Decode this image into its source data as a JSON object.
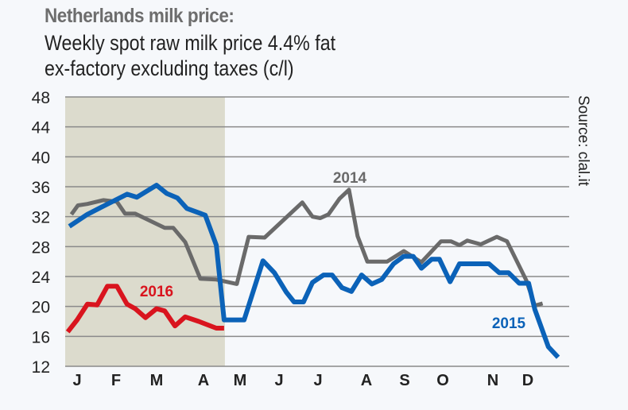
{
  "chart_data": {
    "type": "line",
    "title": "Netherlands milk price:",
    "subtitle": [
      "Weekly spot raw milk price 4.4% fat",
      "ex-factory excluding taxes (c/l)"
    ],
    "source": "Source: clal.it",
    "xlabel": "",
    "ylabel": "",
    "x_unit": "month",
    "x_tick_labels": [
      "J",
      "F",
      "M",
      "A",
      "M",
      "J",
      "J",
      "A",
      "S",
      "O",
      "N",
      "D"
    ],
    "y_ticks": [
      12,
      16,
      20,
      24,
      28,
      32,
      36,
      40,
      44,
      48
    ],
    "ylim": [
      12,
      48
    ],
    "grid": "horizontal",
    "shaded_until_month": 4.61,
    "colors": {
      "2014": "#6a6a6a",
      "2015": "#0b62b8",
      "2016": "#d9141e",
      "shade": "#dcdbcd",
      "grid": "#8a8a8a"
    },
    "series": [
      {
        "name": "2014",
        "x": [
          0.86,
          1.02,
          1.25,
          1.64,
          1.97,
          2.17,
          2.42,
          3.14,
          3.35,
          3.64,
          4.01,
          4.4,
          4.9,
          5.19,
          5.58,
          6.5,
          6.75,
          6.94,
          7.14,
          7.41,
          7.64,
          7.85,
          8.09,
          8.57,
          8.98,
          9.41,
          9.89,
          10.13,
          10.34,
          10.53,
          10.86,
          11.25,
          11.5,
          11.97,
          12.18,
          12.37
        ],
        "y": [
          32.3,
          33.5,
          33.7,
          34.2,
          34.0,
          32.4,
          32.4,
          30.5,
          30.5,
          28.6,
          23.7,
          23.6,
          23.0,
          29.3,
          29.2,
          33.9,
          32.0,
          31.8,
          32.3,
          34.4,
          35.6,
          29.4,
          26.0,
          26.0,
          27.4,
          25.9,
          28.7,
          28.7,
          28.2,
          28.8,
          28.3,
          29.3,
          28.7,
          23.5,
          20.1,
          20.4
        ]
      },
      {
        "name": "2015",
        "x": [
          0.81,
          1.25,
          1.64,
          2.22,
          2.46,
          2.94,
          3.19,
          3.45,
          3.68,
          4.13,
          4.4,
          4.59,
          5.08,
          5.54,
          5.82,
          6.11,
          6.3,
          6.53,
          6.75,
          7.02,
          7.23,
          7.47,
          7.7,
          7.95,
          8.2,
          8.44,
          8.73,
          8.98,
          9.21,
          9.41,
          9.66,
          9.85,
          10.11,
          10.34,
          11.06,
          11.31,
          11.54,
          11.8,
          12.03,
          12.18,
          12.51,
          12.75
        ],
        "y": [
          30.7,
          32.3,
          33.4,
          35.0,
          34.6,
          36.2,
          35.1,
          34.5,
          33.1,
          32.2,
          28.2,
          18.2,
          18.2,
          26.1,
          24.5,
          21.9,
          20.6,
          20.6,
          23.2,
          24.2,
          24.2,
          22.5,
          22.0,
          24.2,
          23.0,
          23.6,
          25.7,
          26.7,
          26.7,
          25.1,
          26.3,
          26.3,
          23.3,
          25.7,
          25.7,
          24.5,
          24.5,
          23.1,
          23.1,
          19.6,
          14.6,
          13.2
        ]
      },
      {
        "name": "2016",
        "x": [
          0.77,
          1.0,
          1.25,
          1.49,
          1.74,
          1.97,
          2.22,
          2.42,
          2.67,
          2.94,
          3.14,
          3.39,
          3.64,
          3.97,
          4.4,
          4.59
        ],
        "y": [
          16.6,
          18.2,
          20.3,
          20.2,
          22.7,
          22.7,
          20.3,
          19.7,
          18.5,
          19.7,
          19.4,
          17.4,
          18.6,
          18.0,
          17.1,
          17.1
        ]
      }
    ],
    "annotations": [
      "2014",
      "2015",
      "2016"
    ]
  }
}
